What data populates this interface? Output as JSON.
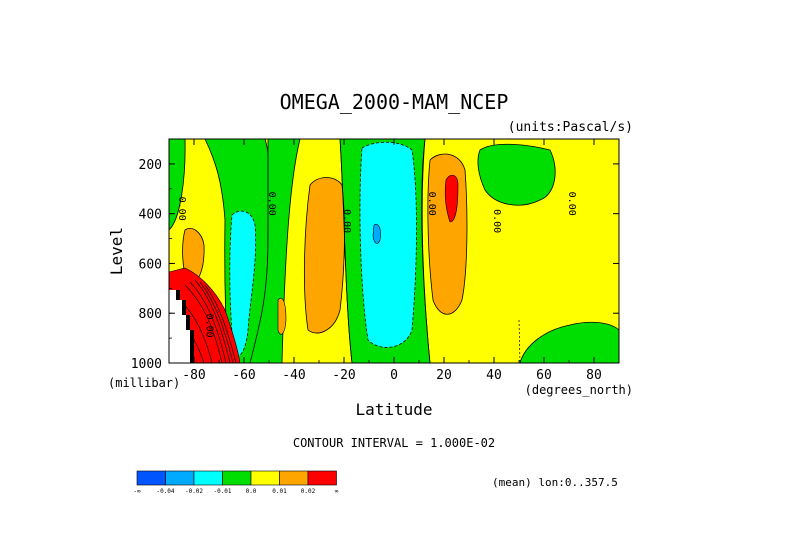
{
  "chart_data": {
    "type": "heatmap",
    "title": "OMEGA_2000-MAM_NCEP",
    "units": "(units:Pascal/s)",
    "xlabel": "Latitude",
    "ylabel": "Level",
    "x_unit": "(degrees_north)",
    "y_unit": "(millibar)",
    "xlim": [
      -90,
      90
    ],
    "ylim": [
      1000,
      100
    ],
    "x_ticks": [
      "-80",
      "-60",
      "-40",
      "-20",
      "0",
      "20",
      "40",
      "60",
      "80"
    ],
    "y_ticks": [
      "200",
      "400",
      "600",
      "800",
      "1000"
    ],
    "contour_interval": "CONTOUR INTERVAL = 1.000E-02",
    "mean_note": "(mean) lon:0..357.5",
    "contour_labels": [
      "0.00",
      "0.00",
      "0.00",
      "0.00",
      "0.00",
      "0.00",
      "0.00"
    ],
    "colorbar": {
      "colors": [
        "#0055ff",
        "#00aaff",
        "#00ffff",
        "#00dd00",
        "#ffff00",
        "#ffa500",
        "#ff0000"
      ],
      "labels": [
        "-∞",
        "-0.04",
        "-0.02",
        "-0.01",
        "0.0",
        "0.01",
        "0.02",
        "∞"
      ]
    },
    "regions": [
      {
        "name": "neg-weak-south",
        "class": "-0.01 to 0.00",
        "lat_range": [
          -72,
          -50
        ],
        "p_range": [
          100,
          1000
        ]
      },
      {
        "name": "neg-mid-south",
        "class": "-0.02 to -0.01",
        "lat_range": [
          -66,
          -58
        ],
        "p_range": [
          350,
          990
        ]
      },
      {
        "name": "pos-mid-south",
        "class": "0.01 to 0.02",
        "lat_range": [
          -38,
          -20
        ],
        "p_range": [
          230,
          880
        ]
      },
      {
        "name": "neg-tropics",
        "class": "-0.02 to -0.01",
        "lat_range": [
          -14,
          10
        ],
        "p_range": [
          120,
          940
        ]
      },
      {
        "name": "pos-tropics-max",
        "class": "> 0.02",
        "lat_range": [
          20,
          26
        ],
        "p_range": [
          250,
          470
        ]
      },
      {
        "name": "pos-tropics",
        "class": "0.01 to 0.02",
        "lat_range": [
          14,
          32
        ],
        "p_range": [
          120,
          830
        ]
      },
      {
        "name": "neg-weak-tropics",
        "class": "-0.01 to 0.00",
        "lat_range": [
          -30,
          12
        ],
        "p_range": [
          100,
          1000
        ]
      },
      {
        "name": "neg-weak-north",
        "class": "-0.01 to 0.00",
        "lat_range": [
          38,
          58
        ],
        "p_range": [
          100,
          360
        ]
      },
      {
        "name": "pos-antarctic-max",
        "class": "> 0.02",
        "lat_range": [
          -90,
          -64
        ],
        "p_range": [
          650,
          1000
        ]
      }
    ]
  }
}
